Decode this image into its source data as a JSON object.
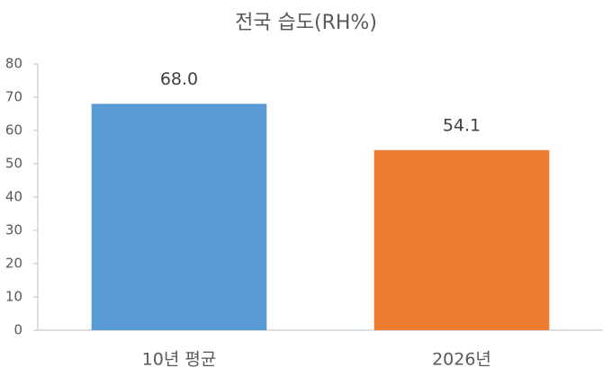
{
  "chart_data": {
    "type": "bar",
    "title": "전국 습도(RH%)",
    "categories": [
      "10년 평균",
      "2026년"
    ],
    "values": [
      68.0,
      54.1
    ],
    "value_labels": [
      "68.0",
      "54.1"
    ],
    "colors": [
      "#5b9bd5",
      "#ed7d31"
    ],
    "ylim": [
      0,
      80
    ],
    "yticks": [
      0,
      10,
      20,
      30,
      40,
      50,
      60,
      70,
      80
    ],
    "grid": false
  }
}
